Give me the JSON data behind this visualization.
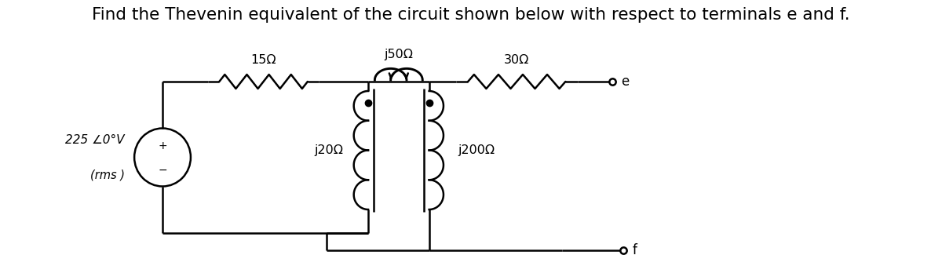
{
  "title": "Find the Thevenin equivalent of the circuit shown below with respect to terminals e and f.",
  "title_fontsize": 15.5,
  "title_color": "#000000",
  "bg_color": "#ffffff",
  "line_color": "#000000",
  "line_width": 1.8,
  "source_label": "225 ∠0°V",
  "source_label2": "(rms )",
  "R1_label": "15Ω",
  "L1_label": "j50Ω",
  "R2_label": "30Ω",
  "L2_label": "j20Ω",
  "L3_label": "j200Ω",
  "terminal_e": "e",
  "terminal_f": "f",
  "fig_w": 12.0,
  "fig_h": 3.39,
  "dpi": 100
}
